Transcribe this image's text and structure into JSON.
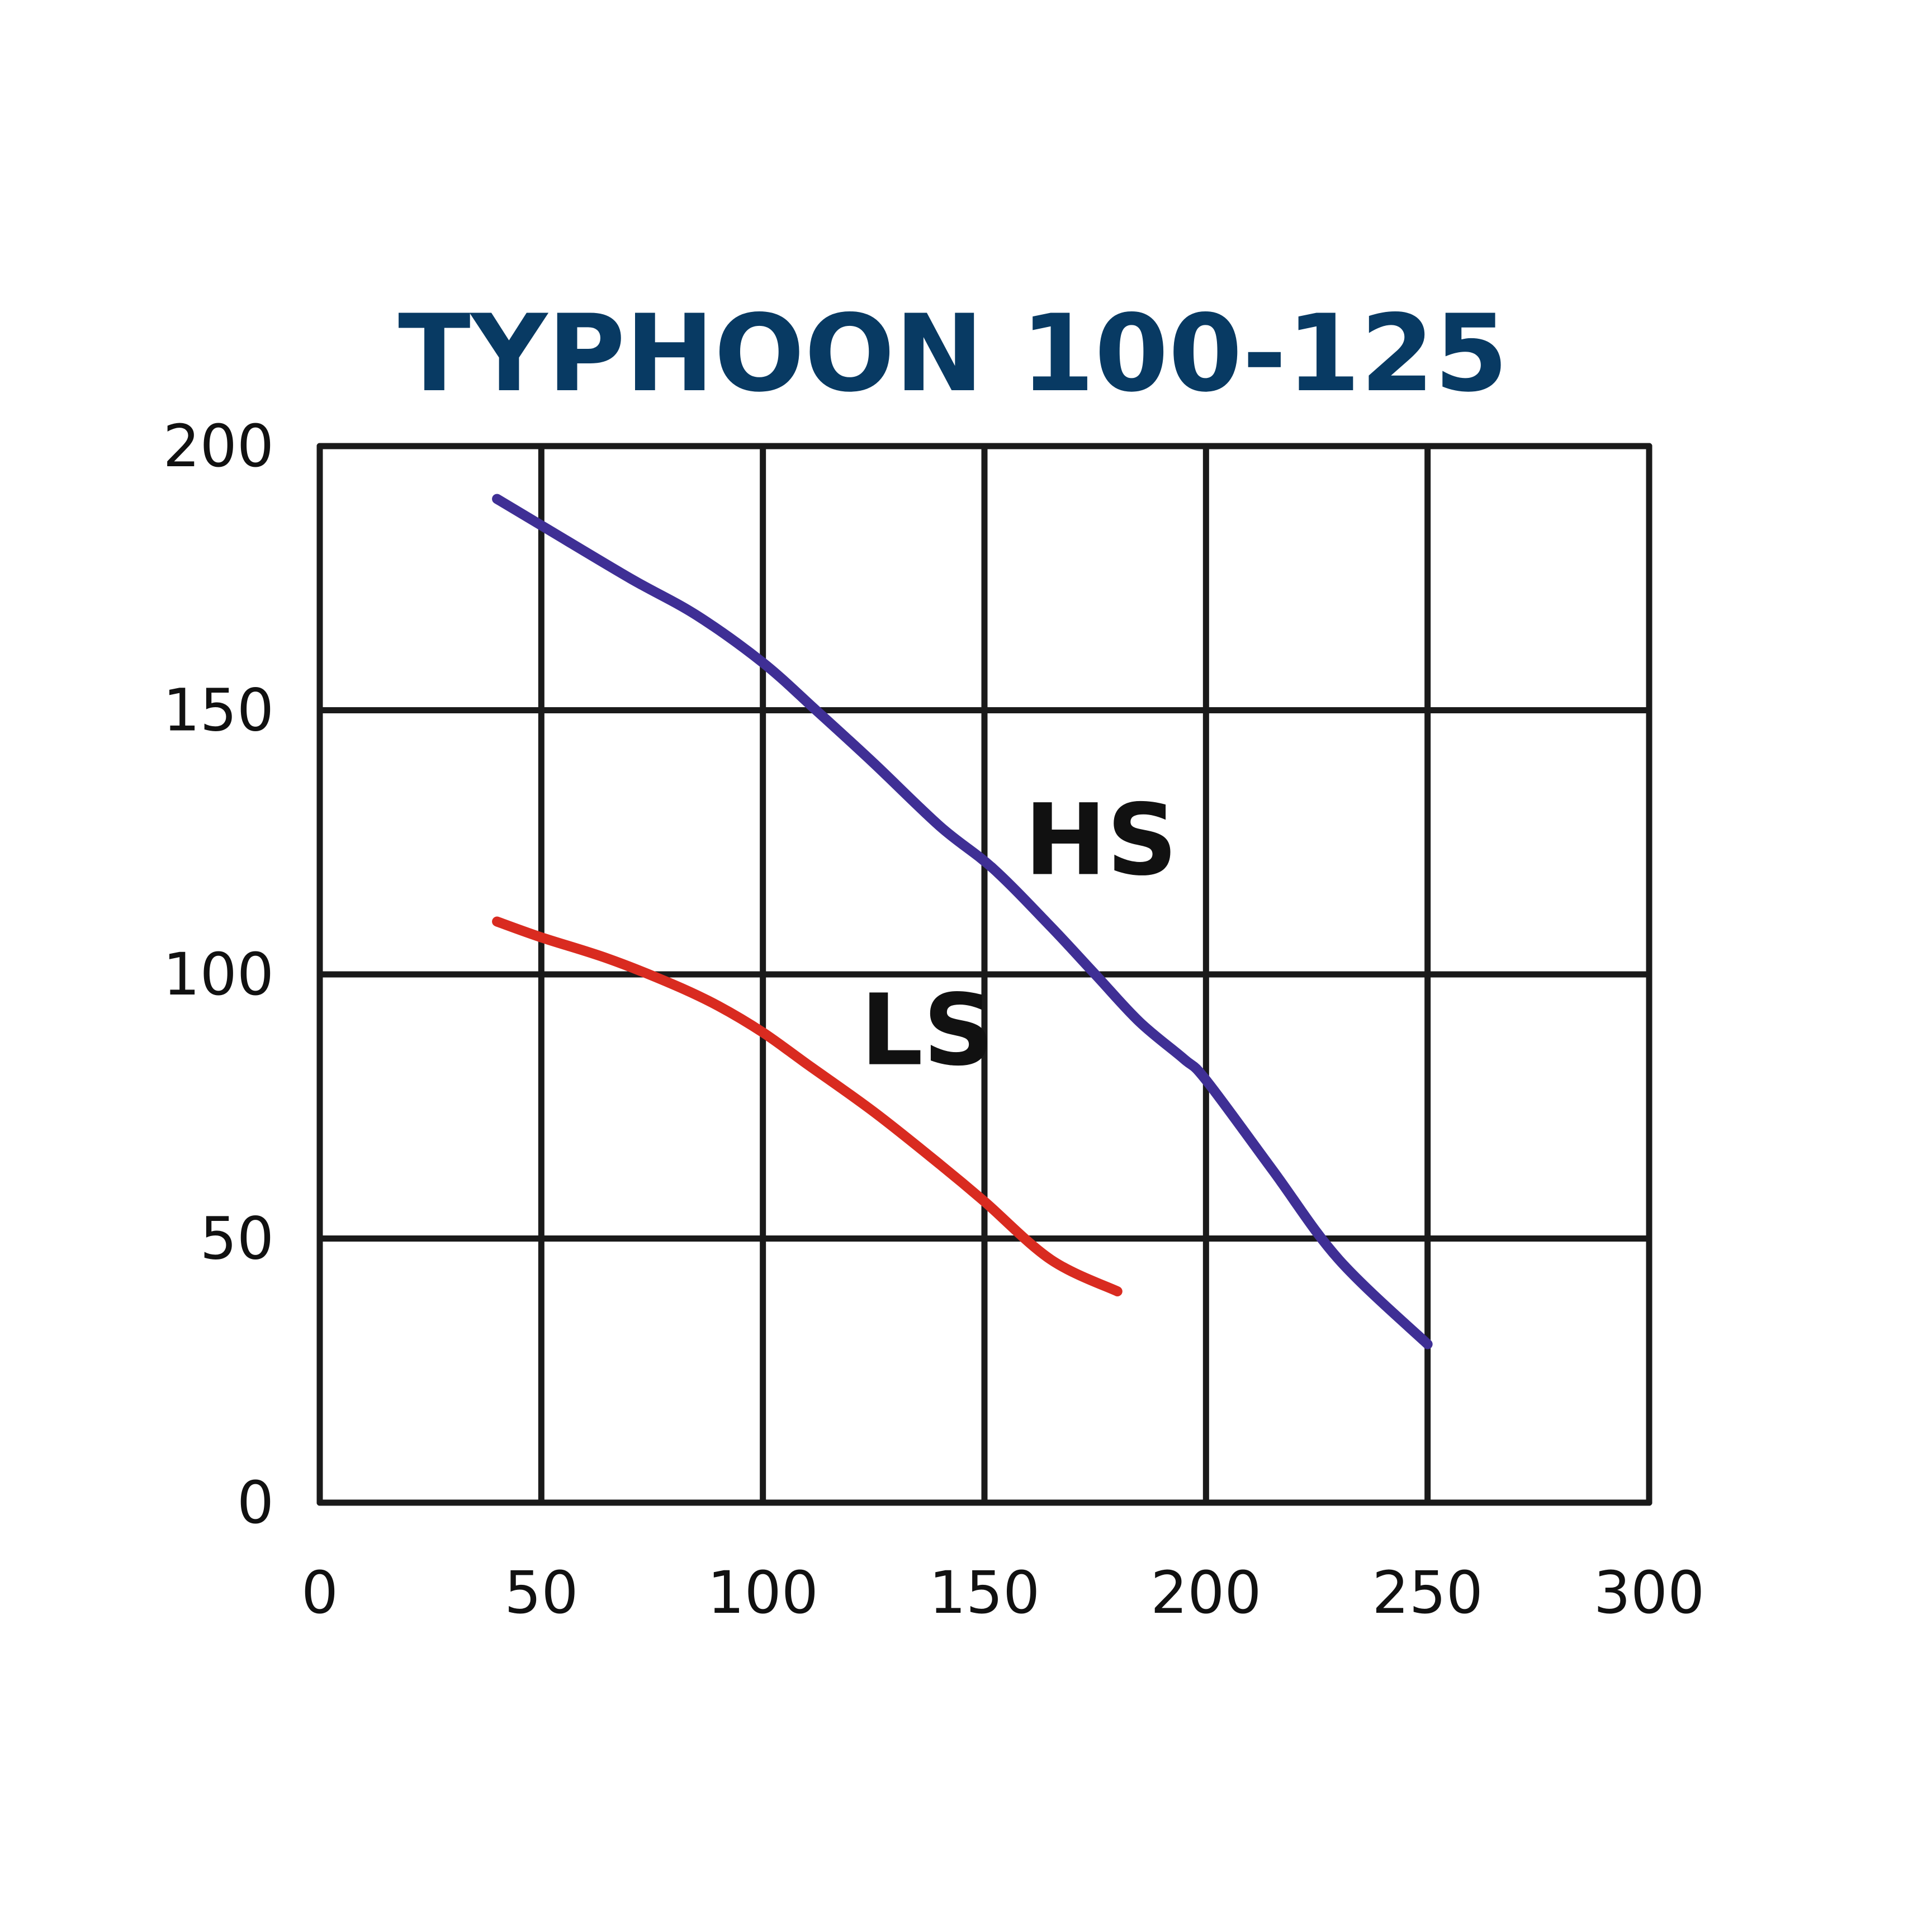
{
  "chart_data": {
    "type": "line",
    "title": "TYPHOON 100-125",
    "xlabel": "",
    "ylabel": "",
    "xlim": [
      0,
      300
    ],
    "ylim": [
      0,
      200
    ],
    "x_ticks": [
      0,
      50,
      100,
      150,
      200,
      250,
      300
    ],
    "y_ticks": [
      0,
      50,
      100,
      150,
      200
    ],
    "x_tick_labels": [
      "0",
      "50",
      "100",
      "150",
      "200",
      "250",
      "300"
    ],
    "y_tick_labels": [
      "0",
      "50",
      "100",
      "150",
      "200"
    ],
    "grid": true,
    "series": [
      {
        "name": "HS",
        "color": "#3f2f95",
        "x": [
          40,
          50,
          70,
          85,
          100,
          112,
          125,
          140,
          152,
          165,
          175,
          185,
          195,
          200,
          215,
          230,
          250
        ],
        "y": [
          190,
          185,
          175,
          168,
          159,
          150,
          140,
          128,
          120,
          109,
          100,
          91,
          84,
          80,
          63,
          46,
          30
        ]
      },
      {
        "name": "LS",
        "color": "#d92b20",
        "x": [
          40,
          50,
          65,
          80,
          90,
          100,
          110,
          125,
          140,
          150,
          165,
          180
        ],
        "y": [
          110,
          107,
          103,
          98,
          94,
          89,
          83,
          74,
          64,
          57,
          46,
          40
        ]
      }
    ],
    "annotations": [
      {
        "text": "HS",
        "x": 159,
        "y": 119
      },
      {
        "text": "LS",
        "x": 122,
        "y": 83
      }
    ],
    "title_color": "#083a63"
  }
}
